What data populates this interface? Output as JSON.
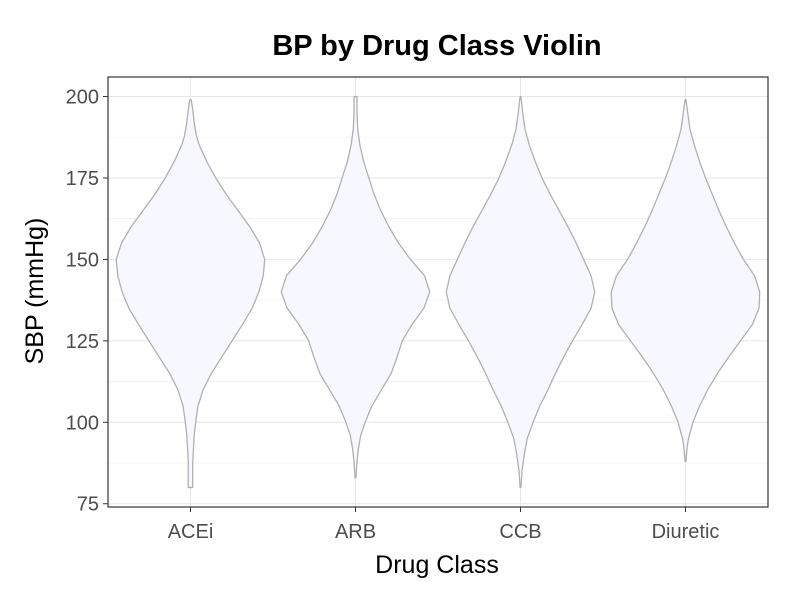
{
  "chart_data": {
    "type": "violin",
    "title": "BP by Drug Class Violin",
    "xlabel": "Drug Class",
    "ylabel": "SBP (mmHg)",
    "ylim": [
      74,
      206
    ],
    "yticks": [
      75,
      100,
      125,
      150,
      175,
      200
    ],
    "grid": true,
    "legend": "none",
    "colors": {
      "fill": "#f7f8ff",
      "stroke": "#b0b0b0",
      "grid": "#e6e6e6",
      "panel_border": "#333333"
    },
    "categories": [
      "ACEi",
      "ARB",
      "CCB",
      "Diuretic"
    ],
    "series": [
      {
        "category": "ACEi",
        "min": 80,
        "max": 199,
        "profile": [
          [
            80,
            0.03
          ],
          [
            82,
            0.03
          ],
          [
            85,
            0.03
          ],
          [
            88,
            0.03
          ],
          [
            92,
            0.04
          ],
          [
            96,
            0.05
          ],
          [
            100,
            0.07
          ],
          [
            105,
            0.1
          ],
          [
            110,
            0.17
          ],
          [
            115,
            0.28
          ],
          [
            120,
            0.42
          ],
          [
            125,
            0.56
          ],
          [
            130,
            0.7
          ],
          [
            135,
            0.83
          ],
          [
            140,
            0.92
          ],
          [
            145,
            0.98
          ],
          [
            150,
            1.0
          ],
          [
            155,
            0.93
          ],
          [
            160,
            0.8
          ],
          [
            165,
            0.64
          ],
          [
            170,
            0.48
          ],
          [
            175,
            0.34
          ],
          [
            180,
            0.22
          ],
          [
            185,
            0.12
          ],
          [
            188,
            0.08
          ],
          [
            192,
            0.05
          ],
          [
            196,
            0.03
          ],
          [
            199,
            0.01
          ]
        ]
      },
      {
        "category": "ARB",
        "min": 83,
        "max": 200,
        "profile": [
          [
            83,
            0.0
          ],
          [
            88,
            0.02
          ],
          [
            92,
            0.04
          ],
          [
            96,
            0.07
          ],
          [
            100,
            0.13
          ],
          [
            105,
            0.22
          ],
          [
            110,
            0.35
          ],
          [
            115,
            0.48
          ],
          [
            120,
            0.56
          ],
          [
            125,
            0.63
          ],
          [
            130,
            0.76
          ],
          [
            135,
            0.92
          ],
          [
            140,
            1.0
          ],
          [
            145,
            0.93
          ],
          [
            150,
            0.74
          ],
          [
            155,
            0.58
          ],
          [
            160,
            0.45
          ],
          [
            165,
            0.34
          ],
          [
            170,
            0.25
          ],
          [
            175,
            0.18
          ],
          [
            180,
            0.11
          ],
          [
            185,
            0.06
          ],
          [
            190,
            0.03
          ],
          [
            195,
            0.02
          ],
          [
            200,
            0.02
          ]
        ]
      },
      {
        "category": "CCB",
        "min": 80,
        "max": 200,
        "profile": [
          [
            80,
            0.0
          ],
          [
            85,
            0.02
          ],
          [
            90,
            0.05
          ],
          [
            95,
            0.09
          ],
          [
            100,
            0.17
          ],
          [
            105,
            0.26
          ],
          [
            110,
            0.37
          ],
          [
            115,
            0.47
          ],
          [
            120,
            0.58
          ],
          [
            125,
            0.7
          ],
          [
            130,
            0.83
          ],
          [
            135,
            0.95
          ],
          [
            140,
            1.0
          ],
          [
            145,
            0.95
          ],
          [
            150,
            0.85
          ],
          [
            155,
            0.75
          ],
          [
            160,
            0.64
          ],
          [
            165,
            0.52
          ],
          [
            170,
            0.4
          ],
          [
            175,
            0.29
          ],
          [
            180,
            0.2
          ],
          [
            185,
            0.12
          ],
          [
            190,
            0.06
          ],
          [
            195,
            0.03
          ],
          [
            200,
            0.0
          ]
        ]
      },
      {
        "category": "Diuretic",
        "min": 88,
        "max": 199,
        "profile": [
          [
            88,
            0.0
          ],
          [
            92,
            0.02
          ],
          [
            95,
            0.04
          ],
          [
            100,
            0.1
          ],
          [
            105,
            0.19
          ],
          [
            110,
            0.3
          ],
          [
            115,
            0.43
          ],
          [
            120,
            0.58
          ],
          [
            125,
            0.74
          ],
          [
            130,
            0.9
          ],
          [
            135,
            0.99
          ],
          [
            140,
            1.0
          ],
          [
            145,
            0.93
          ],
          [
            150,
            0.78
          ],
          [
            155,
            0.66
          ],
          [
            160,
            0.55
          ],
          [
            165,
            0.45
          ],
          [
            170,
            0.36
          ],
          [
            175,
            0.27
          ],
          [
            180,
            0.19
          ],
          [
            185,
            0.12
          ],
          [
            190,
            0.06
          ],
          [
            195,
            0.03
          ],
          [
            199,
            0.0
          ]
        ]
      }
    ]
  }
}
